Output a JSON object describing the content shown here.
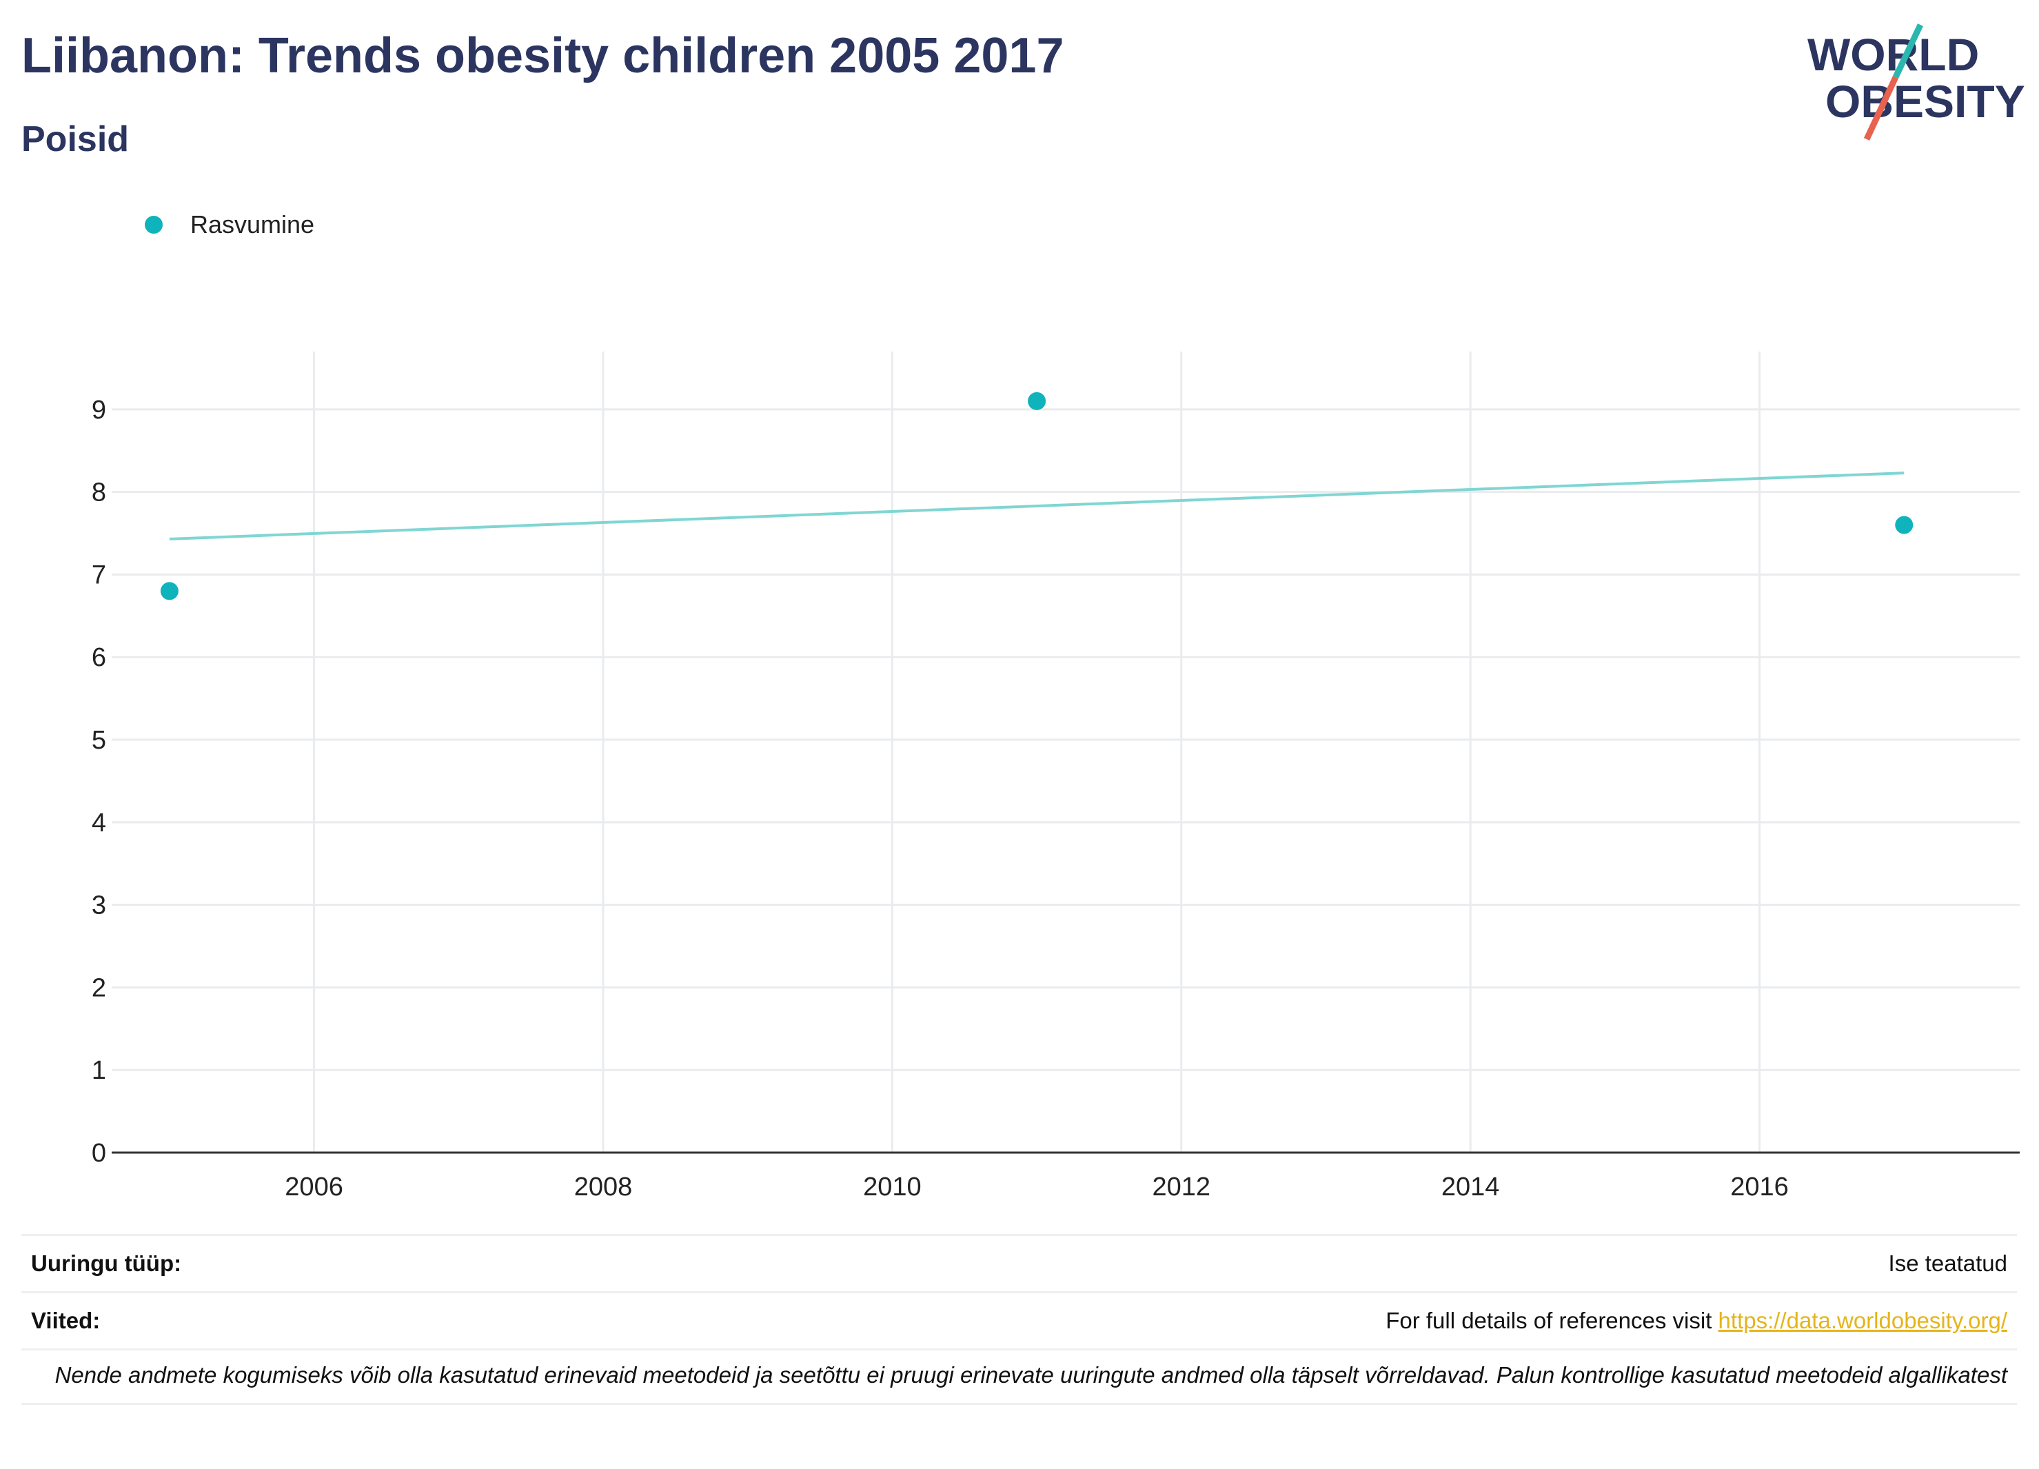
{
  "header": {
    "title": "Liibanon: Trends obesity children 2005 2017",
    "subtitle": "Poisid"
  },
  "logo": {
    "line1": "WORLD",
    "line2": "OBESITY",
    "text_color": "#2b3560",
    "slash_teal": "#2ab7b0",
    "slash_red": "#e7624f"
  },
  "legend": {
    "label": "Rasvumine",
    "color": "#0fb3bc"
  },
  "chart_data": {
    "type": "scatter",
    "series": [
      {
        "name": "Rasvumine",
        "x": [
          2005,
          2011,
          2017
        ],
        "y": [
          6.8,
          9.1,
          7.6
        ],
        "color": "#0fb3bc"
      }
    ],
    "trendline": {
      "x": [
        2005,
        2017
      ],
      "y": [
        7.43,
        8.23
      ],
      "color": "#7fd6d3"
    },
    "xlim": [
      2004.6,
      2017.8
    ],
    "ylim": [
      0,
      9.7
    ],
    "x_ticks": [
      2006,
      2008,
      2010,
      2012,
      2014,
      2016
    ],
    "y_ticks": [
      0,
      1,
      2,
      3,
      4,
      5,
      6,
      7,
      8,
      9
    ],
    "grid": true,
    "legend_position": "top-left",
    "xlabel": "",
    "ylabel": ""
  },
  "meta": {
    "survey_type_label": "Uuringu tüüp:",
    "survey_type_value": "Ise teatatud",
    "references_label": "Viited:",
    "references_text": "For full details of references visit ",
    "references_link": "https://data.worldobesity.org/",
    "note": "Nende andmete kogumiseks võib olla kasutatud erinevaid meetodeid ja seetõttu ei pruugi erinevate uuringute andmed olla täpselt võrreldavad. Palun kontrollige kasutatud meetodeid algallikatest"
  }
}
